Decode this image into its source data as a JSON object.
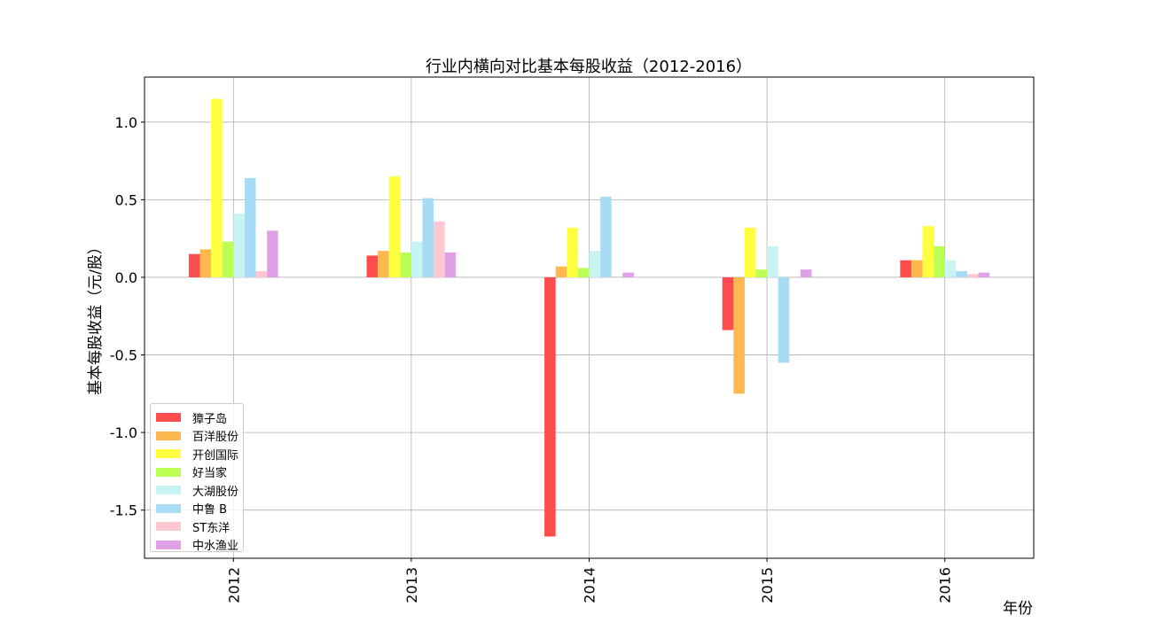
{
  "chart_data": {
    "type": "bar",
    "title": "行业内横向对比基本每股收益（2012-2016）",
    "xlabel": "年份",
    "ylabel": "基本每股收益（元/股）",
    "categories": [
      "2012",
      "2013",
      "2014",
      "2015",
      "2016"
    ],
    "ylim": [
      -1.81,
      1.29
    ],
    "yticks": [
      -1.5,
      -1.0,
      -0.5,
      0.0,
      0.5,
      1.0
    ],
    "ytick_labels": [
      "-1.5",
      "-1.0",
      "-0.5",
      "0.0",
      "0.5",
      "1.0"
    ],
    "grid": true,
    "legend_position": "lower-left",
    "series": [
      {
        "name": "獐子岛",
        "color": "#ff4c4c",
        "values": [
          0.15,
          0.14,
          -1.67,
          -0.34,
          0.11
        ]
      },
      {
        "name": "百洋股份",
        "color": "#ffb84d",
        "values": [
          0.18,
          0.17,
          0.07,
          -0.75,
          0.11
        ]
      },
      {
        "name": "开创国际",
        "color": "#ffff40",
        "values": [
          1.15,
          0.65,
          0.32,
          0.32,
          0.33
        ]
      },
      {
        "name": "好当家",
        "color": "#bbff55",
        "values": [
          0.23,
          0.16,
          0.06,
          0.05,
          0.2
        ]
      },
      {
        "name": "大湖股份",
        "color": "#c8f4f4",
        "values": [
          0.41,
          0.23,
          0.17,
          0.2,
          0.11
        ]
      },
      {
        "name": "中鲁 B",
        "color": "#a8dcf5",
        "values": [
          0.64,
          0.51,
          0.52,
          -0.55,
          0.04
        ]
      },
      {
        "name": "ST东洋",
        "color": "#ffc8d0",
        "values": [
          0.04,
          0.36,
          0.0,
          0.0,
          0.02
        ]
      },
      {
        "name": "中水渔业",
        "color": "#e0a0e6",
        "values": [
          0.3,
          0.16,
          0.03,
          0.05,
          0.03
        ]
      }
    ]
  }
}
